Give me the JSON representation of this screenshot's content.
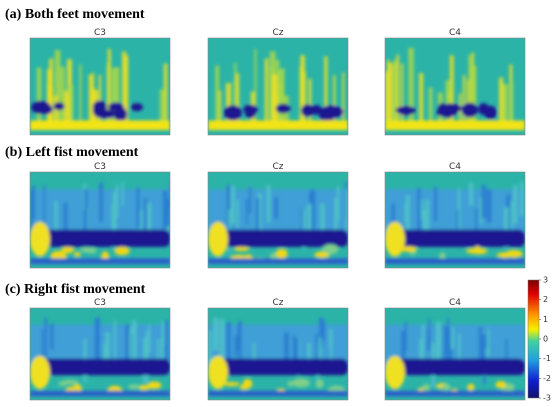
{
  "rows": [
    {
      "title": "(a) Both feet movement",
      "panels": [
        "C3",
        "Cz",
        "C4"
      ]
    },
    {
      "title": "(b) Left fist movement",
      "panels": [
        "C3",
        "Cz",
        "C4"
      ]
    },
    {
      "title": "(c) Right fist movement",
      "panels": [
        "C3",
        "Cz",
        "C4"
      ]
    }
  ],
  "colorbar": {
    "lim": [
      -3,
      3
    ],
    "ticks": [
      3,
      2,
      1,
      0,
      -1,
      -2,
      -3
    ]
  }
}
